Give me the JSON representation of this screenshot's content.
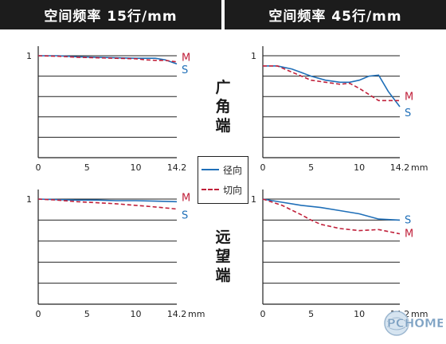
{
  "headers": {
    "left": "空间频率 15行/mm",
    "right": "空间频率 45行/mm"
  },
  "side_labels": {
    "wide": [
      "广",
      "角",
      "端"
    ],
    "tele": [
      "远",
      "望",
      "端"
    ]
  },
  "legend": {
    "sagittal": "径向",
    "meridional": "切向"
  },
  "colors": {
    "sagittal": "#1f6fb8",
    "meridional": "#c0203a",
    "header_bg": "#1c1c1c"
  },
  "watermark": "PCHOME",
  "chart_data": [
    {
      "type": "line",
      "name": "wide-15",
      "xlim": [
        0,
        14.2
      ],
      "ylim": [
        0,
        1
      ],
      "x_ticks": [
        "0",
        "5",
        "10",
        "14.2"
      ],
      "x_unit": "",
      "y_tick": "1",
      "series": [
        {
          "name": "S",
          "style": "solid",
          "x": [
            0,
            2,
            4,
            6,
            8,
            10,
            11,
            12,
            13,
            14.2
          ],
          "y": [
            1.0,
            1.0,
            0.99,
            0.985,
            0.98,
            0.975,
            0.975,
            0.975,
            0.96,
            0.92
          ]
        },
        {
          "name": "M",
          "style": "dashed",
          "x": [
            0,
            2,
            4,
            6,
            8,
            10,
            11,
            12,
            13,
            14.2
          ],
          "y": [
            1.0,
            0.995,
            0.985,
            0.98,
            0.975,
            0.97,
            0.96,
            0.955,
            0.955,
            0.94
          ]
        }
      ]
    },
    {
      "type": "line",
      "name": "wide-45",
      "xlim": [
        0,
        14.2
      ],
      "ylim": [
        0,
        1
      ],
      "x_ticks": [
        "0",
        "5",
        "10",
        "14.2"
      ],
      "x_unit": "mm",
      "y_tick": "1",
      "series": [
        {
          "name": "S",
          "style": "solid",
          "x": [
            0,
            1.5,
            3,
            5,
            6.5,
            8,
            9,
            10,
            11,
            12,
            13,
            14.2
          ],
          "y": [
            0.9,
            0.9,
            0.87,
            0.8,
            0.76,
            0.74,
            0.74,
            0.76,
            0.8,
            0.81,
            0.65,
            0.5
          ]
        },
        {
          "name": "M",
          "style": "dashed",
          "x": [
            0,
            1.5,
            3,
            5,
            6.5,
            8,
            9,
            10,
            11,
            12,
            13,
            14.2
          ],
          "y": [
            0.9,
            0.9,
            0.84,
            0.76,
            0.74,
            0.72,
            0.73,
            0.68,
            0.62,
            0.56,
            0.56,
            0.56
          ]
        }
      ]
    },
    {
      "type": "line",
      "name": "tele-15",
      "xlim": [
        0,
        14.2
      ],
      "ylim": [
        0,
        1
      ],
      "x_ticks": [
        "0",
        "5",
        "10",
        "14.2"
      ],
      "x_unit": "mm",
      "y_tick": "1",
      "series": [
        {
          "name": "S",
          "style": "solid",
          "x": [
            0,
            2,
            4,
            6,
            8,
            10,
            12,
            14.2
          ],
          "y": [
            1.0,
            0.995,
            0.99,
            0.99,
            0.985,
            0.985,
            0.98,
            0.975
          ]
        },
        {
          "name": "M",
          "style": "dashed",
          "x": [
            0,
            2,
            4,
            6,
            8,
            10,
            12,
            14.2
          ],
          "y": [
            1.0,
            0.99,
            0.975,
            0.965,
            0.955,
            0.94,
            0.925,
            0.905
          ]
        }
      ]
    },
    {
      "type": "line",
      "name": "tele-45",
      "xlim": [
        0,
        14.2
      ],
      "ylim": [
        0,
        1
      ],
      "x_ticks": [
        "0",
        "5",
        "10",
        "14.2"
      ],
      "x_unit": "mm",
      "y_tick": "1",
      "series": [
        {
          "name": "S",
          "style": "solid",
          "x": [
            0,
            2,
            4,
            6,
            8,
            10,
            12,
            14.2
          ],
          "y": [
            1.0,
            0.97,
            0.94,
            0.92,
            0.89,
            0.86,
            0.81,
            0.8
          ]
        },
        {
          "name": "M",
          "style": "dashed",
          "x": [
            0,
            2,
            4,
            5,
            6,
            8,
            10,
            12,
            14.2
          ],
          "y": [
            1.0,
            0.94,
            0.85,
            0.8,
            0.76,
            0.72,
            0.7,
            0.71,
            0.67
          ]
        }
      ]
    }
  ]
}
